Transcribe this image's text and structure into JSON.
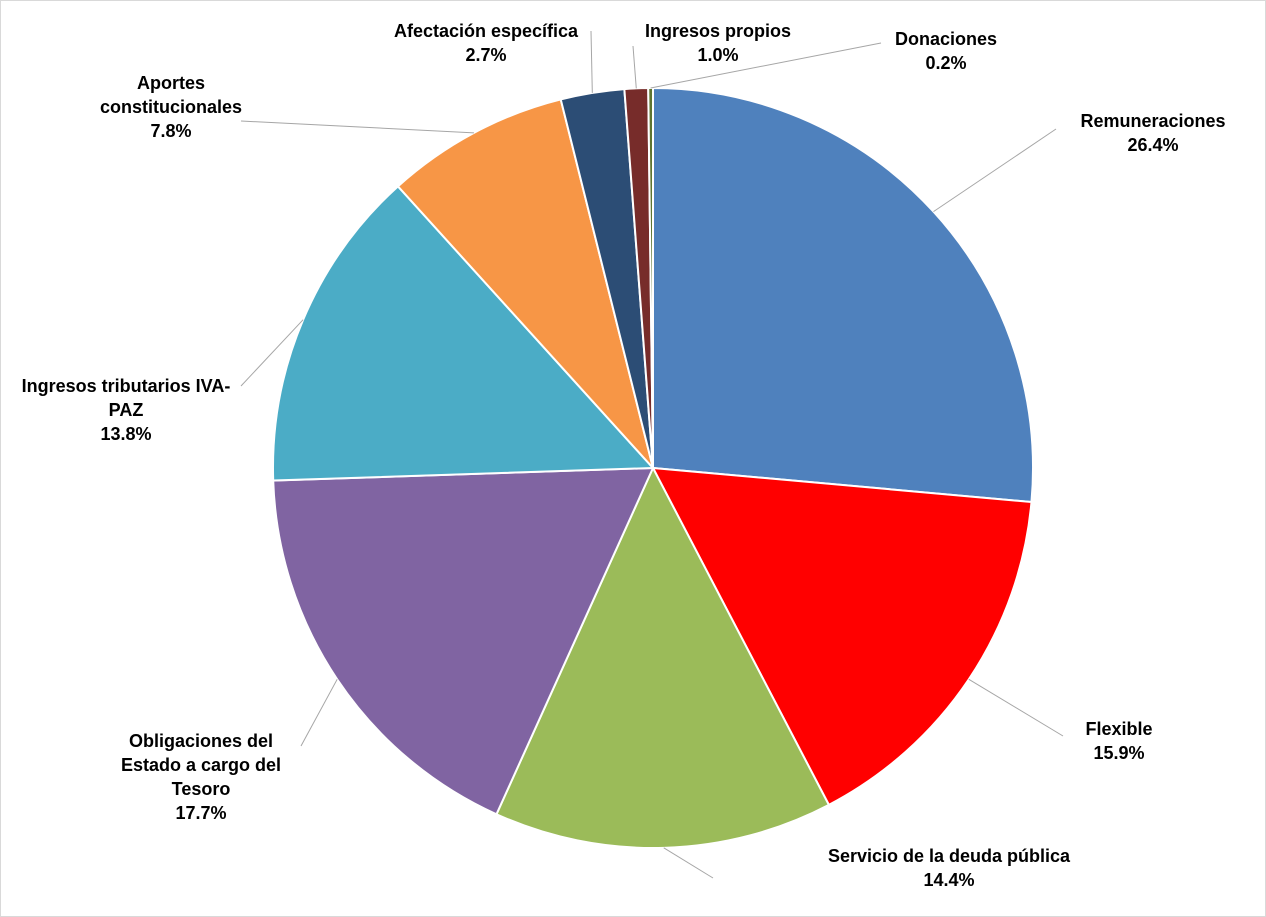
{
  "chart_data": {
    "type": "pie",
    "categories": [
      "Remuneraciones",
      "Flexible",
      "Servicio de la deuda pública",
      "Obligaciones del Estado a cargo del Tesoro",
      "Ingresos tributarios IVA-PAZ",
      "Aportes constitucionales",
      "Afectación específica",
      "Ingresos propios",
      "Donaciones"
    ],
    "values": [
      26.4,
      15.9,
      14.4,
      17.7,
      13.8,
      7.8,
      2.7,
      1.0,
      0.2
    ],
    "value_labels": [
      "26.4%",
      "15.9%",
      "14.4%",
      "17.7%",
      "13.8%",
      "7.8%",
      "2.7%",
      "1.0%",
      "0.2%"
    ],
    "colors": [
      "#4f81bd",
      "#ff0000",
      "#9bbb59",
      "#8064a2",
      "#4bacc6",
      "#f79646",
      "#2c4d75",
      "#772c2a",
      "#5f7530"
    ]
  }
}
